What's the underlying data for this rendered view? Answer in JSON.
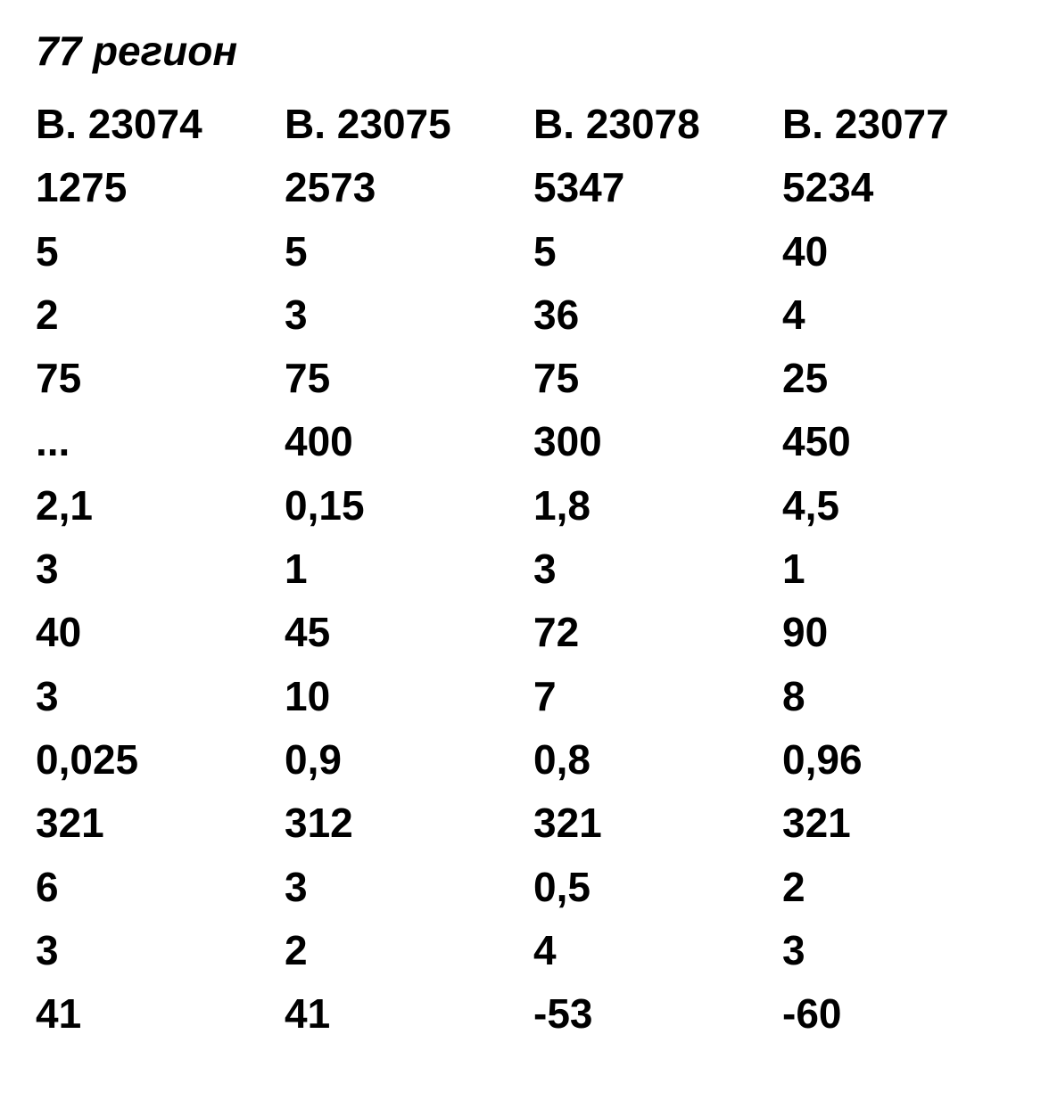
{
  "title": "77 регион",
  "columns": [
    {
      "header": "В. 23074",
      "values": [
        "1275",
        "5",
        "2",
        "75",
        "...",
        "2,1",
        "3",
        "40",
        "3",
        "0,025",
        "321",
        "6",
        "3",
        "41"
      ]
    },
    {
      "header": "В. 23075",
      "values": [
        "2573",
        "5",
        "3",
        "75",
        "400",
        "0,15",
        "1",
        "45",
        "10",
        "0,9",
        "312",
        "3",
        "2",
        "41"
      ]
    },
    {
      "header": "В. 23078",
      "values": [
        "5347",
        "5",
        "36",
        "75",
        "300",
        "1,8",
        "3",
        "72",
        "7",
        "0,8",
        "321",
        "0,5",
        "4",
        "-53"
      ]
    },
    {
      "header": "В. 23077",
      "values": [
        "5234",
        "40",
        "4",
        "25",
        "450",
        "4,5",
        "1",
        "90",
        "8",
        "0,96",
        "321",
        "2",
        "3",
        "-60"
      ]
    }
  ],
  "styling": {
    "background_color": "#ffffff",
    "text_color": "#000000",
    "font_family": "Arial, Helvetica, sans-serif",
    "title_fontsize": 46,
    "title_fontweight": "bold",
    "title_fontstyle": "italic",
    "cell_fontsize": 46,
    "cell_fontweight": "bold",
    "num_columns": 4,
    "num_rows": 15
  }
}
